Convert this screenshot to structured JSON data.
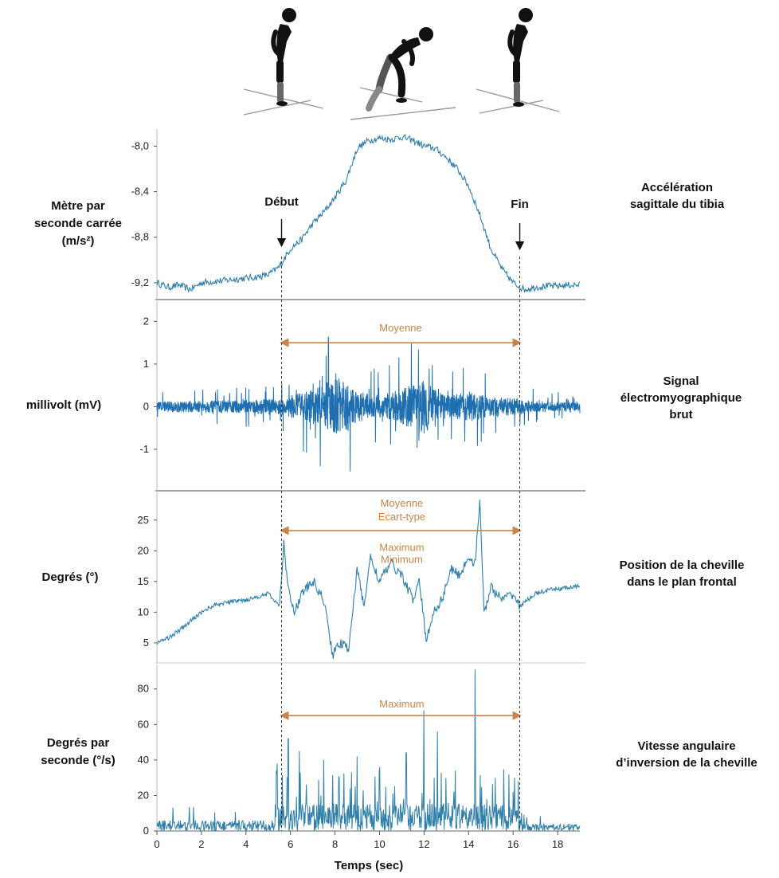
{
  "xaxis": {
    "label": "Temps (sec)",
    "range": [
      0,
      19
    ],
    "ticks": [
      0,
      2,
      4,
      6,
      8,
      10,
      12,
      14,
      16,
      18
    ]
  },
  "markers": {
    "start": {
      "label": "Début",
      "x": 5.6
    },
    "end": {
      "label": "Fin",
      "x": 16.3
    }
  },
  "colors": {
    "signal": "#2f7fa8",
    "emg": "#1f6fb0",
    "annotation": "#c8844a",
    "text": "#111111"
  },
  "icons": [
    "standing-figure-icon",
    "squatting-figure-icon",
    "standing-figure-icon"
  ],
  "chart_data": [
    {
      "type": "line",
      "title": "Accélération sagittale du tibia",
      "ylabel": [
        "Mètre par",
        "seconde carrée",
        "(m/s²)"
      ],
      "right_label": [
        "Accélération",
        "sagittale du tibia"
      ],
      "ylim": [
        -9.32,
        -7.85
      ],
      "yticks": [
        -8.0,
        -8.4,
        -8.8,
        -9.2
      ],
      "ytick_labels": [
        "-8,0",
        "-8,4",
        "-8,8",
        "-9,2"
      ],
      "x": [
        0,
        0.5,
        1,
        1.5,
        2,
        2.5,
        3,
        3.5,
        4,
        4.5,
        5,
        5.5,
        6,
        6.5,
        7,
        7.5,
        8,
        8.5,
        9,
        9.5,
        10,
        10.5,
        11,
        11.5,
        12,
        12.5,
        13,
        13.5,
        14,
        14.5,
        15,
        15.5,
        16,
        16.5,
        17,
        17.5,
        18,
        18.5,
        19
      ],
      "values": [
        -9.2,
        -9.24,
        -9.22,
        -9.26,
        -9.2,
        -9.19,
        -9.18,
        -9.17,
        -9.16,
        -9.15,
        -9.13,
        -9.06,
        -8.9,
        -8.82,
        -8.68,
        -8.58,
        -8.45,
        -8.3,
        -8.02,
        -7.95,
        -7.93,
        -7.94,
        -7.92,
        -7.95,
        -8.0,
        -8.02,
        -8.1,
        -8.2,
        -8.35,
        -8.6,
        -8.9,
        -9.08,
        -9.2,
        -9.26,
        -9.24,
        -9.23,
        -9.23,
        -9.22,
        -9.22
      ],
      "jitter": 0.03
    },
    {
      "type": "line",
      "title": "Signal électromyographique brut",
      "ylabel": [
        "millivolt (mV)"
      ],
      "right_label": [
        "Signal",
        "électromyographique",
        "brut"
      ],
      "ylim": [
        -1.9,
        2.4
      ],
      "yticks": [
        2,
        1,
        0,
        -1
      ],
      "ytick_labels": [
        "2",
        "1",
        "0",
        "-1"
      ],
      "envelope_x": [
        0,
        2,
        4,
        5.6,
        6.5,
        7.5,
        8,
        8.5,
        9,
        10,
        11,
        11.5,
        12,
        12.5,
        13,
        14,
        15,
        16,
        16.3,
        17,
        18,
        19
      ],
      "envelope_amp": [
        0.28,
        0.3,
        0.34,
        0.45,
        0.75,
        1.1,
        1.6,
        1.3,
        0.8,
        0.6,
        0.9,
        1.2,
        1.4,
        0.9,
        0.6,
        0.8,
        0.5,
        0.45,
        0.38,
        0.3,
        0.25,
        0.22
      ],
      "annotations": [
        {
          "label": "Moyenne",
          "x_start": 5.6,
          "x_end": 16.3,
          "y": 1.5
        }
      ]
    },
    {
      "type": "line",
      "title": "Position de la cheville dans le plan frontal",
      "ylabel": [
        "Degrés (°)"
      ],
      "right_label": [
        "Position de la cheville",
        "dans le plan frontal"
      ],
      "ylim": [
        2,
        29
      ],
      "yticks": [
        25,
        20,
        15,
        10,
        5
      ],
      "ytick_labels": [
        "25",
        "20",
        "15",
        "10",
        "5"
      ],
      "x": [
        0,
        0.5,
        1,
        1.5,
        2,
        2.5,
        3,
        3.5,
        4,
        4.5,
        5,
        5.5,
        5.7,
        5.9,
        6.2,
        6.5,
        7,
        7.5,
        7.9,
        8.2,
        8.6,
        9,
        9.3,
        9.6,
        10,
        10.5,
        11,
        11.5,
        11.8,
        12.1,
        12.4,
        12.8,
        13.2,
        13.6,
        14,
        14.3,
        14.5,
        14.7,
        15,
        15.5,
        16,
        16.3,
        17,
        17.5,
        18,
        18.5,
        19
      ],
      "values": [
        5,
        5.8,
        7,
        8.5,
        10,
        11,
        11.5,
        11.8,
        12,
        12.5,
        13,
        11,
        21,
        14,
        10,
        13,
        15,
        12,
        3,
        5,
        4,
        17,
        11,
        19,
        15,
        18,
        16,
        12,
        15,
        5,
        10,
        12,
        17,
        16,
        19,
        18,
        28,
        10,
        14,
        12,
        13,
        11,
        13,
        13.5,
        13.8,
        14,
        14.2
      ],
      "jitter": 0.6,
      "annotations": [
        {
          "label": "Moyenne",
          "x": 11,
          "y": 27.2
        },
        {
          "label": "Ecart-type",
          "x": 11,
          "y": 25.0
        },
        {
          "label": "Maximum",
          "x": 11,
          "y": 20.0
        },
        {
          "label": "Minimum",
          "x": 11,
          "y": 18.0
        }
      ],
      "arrow": {
        "x_start": 5.6,
        "x_end": 16.3,
        "y": 23.3
      }
    },
    {
      "type": "line",
      "title": "Vitesse angulaire d'inversion de la cheville",
      "ylabel": [
        "Degrés par",
        "seconde (°/s)"
      ],
      "right_label": [
        "Vitesse angulaire",
        "d’inversion de la cheville"
      ],
      "ylim": [
        0,
        92
      ],
      "yticks": [
        80,
        60,
        40,
        20,
        0
      ],
      "ytick_labels": [
        "80",
        "60",
        "40",
        "20",
        "0"
      ],
      "peaks": [
        {
          "x": 5.4,
          "v": 38
        },
        {
          "x": 5.9,
          "v": 52
        },
        {
          "x": 6.4,
          "v": 45
        },
        {
          "x": 7.5,
          "v": 40
        },
        {
          "x": 8.2,
          "v": 30
        },
        {
          "x": 9.0,
          "v": 42
        },
        {
          "x": 10.0,
          "v": 36
        },
        {
          "x": 11.2,
          "v": 44
        },
        {
          "x": 12.0,
          "v": 68
        },
        {
          "x": 12.6,
          "v": 56
        },
        {
          "x": 13.4,
          "v": 34
        },
        {
          "x": 14.3,
          "v": 91
        },
        {
          "x": 15.2,
          "v": 30
        },
        {
          "x": 16.0,
          "v": 22
        }
      ],
      "baseline_pre": 6,
      "baseline_post": 4,
      "annotations": [
        {
          "label": "Maximum",
          "x": 11,
          "y": 69.5
        }
      ],
      "arrow": {
        "x_start": 5.6,
        "x_end": 16.3,
        "y": 65
      }
    }
  ]
}
